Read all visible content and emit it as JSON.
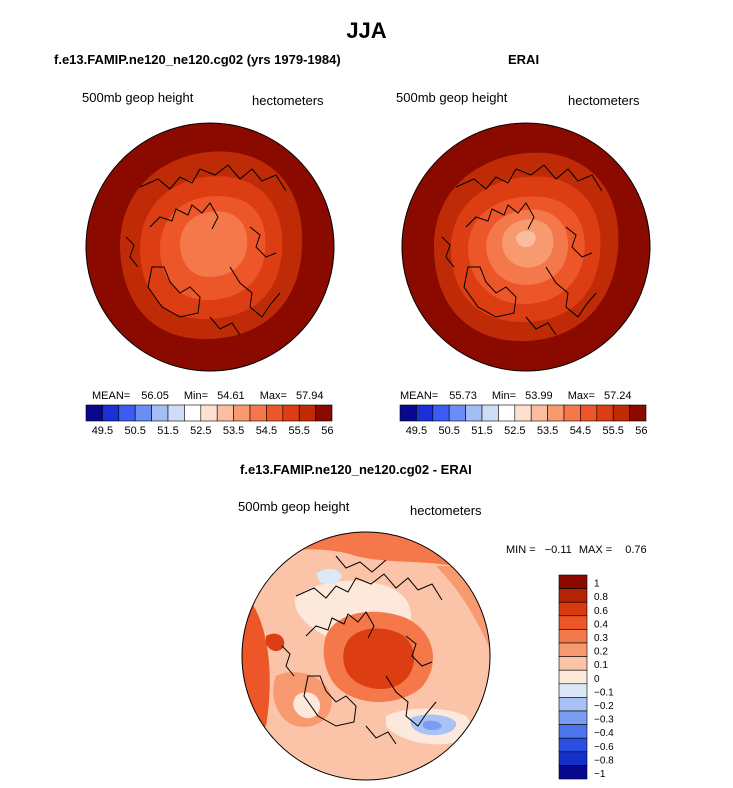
{
  "title": "JJA",
  "panels": [
    {
      "title": "f.e13.FAMIP.ne120_ne120.cg02 (yrs 1979-1984)",
      "variable": "500mb geop height",
      "units": "hectometers",
      "mean_label": "MEAN=",
      "mean": "56.05",
      "min_label": "Min=",
      "min": "54.61",
      "max_label": "Max=",
      "max": "57.94"
    },
    {
      "title": "ERAI",
      "variable": "500mb geop height",
      "units": "hectometers",
      "mean_label": "MEAN=",
      "mean": "55.73",
      "min_label": "Min=",
      "min": "53.99",
      "max_label": "Max=",
      "max": "57.24"
    },
    {
      "title": "f.e13.FAMIP.ne120_ne120.cg02 - ERAI",
      "variable": "500mb geop height",
      "units": "hectometers",
      "min_label": "MIN =",
      "min": "−0.11",
      "max_label": "MAX =",
      "max": "0.76"
    }
  ],
  "chart_data": [
    {
      "type": "heatmap",
      "projection": "north polar stereographic",
      "colorbar": {
        "orientation": "horizontal",
        "levels": [
          "49.5",
          "50.5",
          "51.5",
          "52.5",
          "53.5",
          "54.5",
          "55.5",
          "56.5"
        ],
        "colors": [
          "#08088f",
          "#1a2fd6",
          "#3a5cf0",
          "#6a8ef5",
          "#a3bdf7",
          "#cfdcf7",
          "#ffffff",
          "#fde0d0",
          "#fbbd9f",
          "#f89a70",
          "#f5784a",
          "#ec5628",
          "#dc3d12",
          "#bf2b06",
          "#8b0a00"
        ]
      },
      "field_range": [
        54.61,
        57.94
      ]
    },
    {
      "type": "heatmap",
      "projection": "north polar stereographic",
      "colorbar": {
        "orientation": "horizontal",
        "levels": [
          "49.5",
          "50.5",
          "51.5",
          "52.5",
          "53.5",
          "54.5",
          "55.5",
          "56.5"
        ],
        "colors": [
          "#08088f",
          "#1a2fd6",
          "#3a5cf0",
          "#6a8ef5",
          "#a3bdf7",
          "#cfdcf7",
          "#ffffff",
          "#fde0d0",
          "#fbbd9f",
          "#f89a70",
          "#f5784a",
          "#ec5628",
          "#dc3d12",
          "#bf2b06",
          "#8b0a00"
        ]
      },
      "field_range": [
        53.99,
        57.24
      ]
    },
    {
      "type": "heatmap",
      "projection": "north polar stereographic",
      "colorbar": {
        "orientation": "vertical",
        "levels": [
          "1",
          "0.8",
          "0.6",
          "0.4",
          "0.3",
          "0.2",
          "0.1",
          "0",
          "−0.1",
          "−0.2",
          "−0.3",
          "−0.4",
          "−0.6",
          "−0.8",
          "−1"
        ],
        "colors": [
          "#8b0a00",
          "#b32306",
          "#d83a10",
          "#ec5628",
          "#f5784a",
          "#f89a70",
          "#fbc4a8",
          "#fde9dc",
          "#dce8f8",
          "#a9c2f5",
          "#7a9cf2",
          "#4d74ec",
          "#2a50e2",
          "#1430c8",
          "#08088f"
        ]
      },
      "field_range": [
        -0.11,
        0.76
      ]
    }
  ]
}
